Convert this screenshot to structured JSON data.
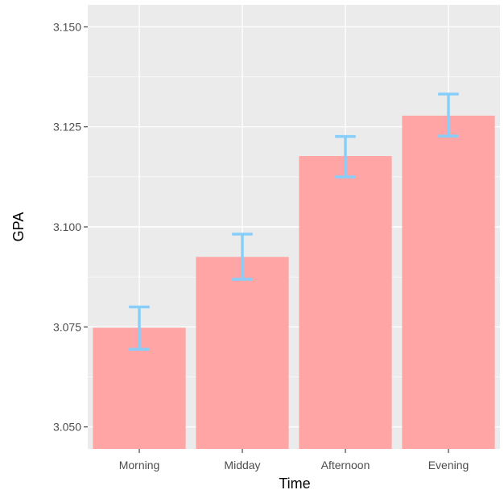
{
  "chart_data": {
    "type": "bar",
    "title": "",
    "xlabel": "Time",
    "ylabel": "GPA",
    "categories": [
      "Morning",
      "Midday",
      "Afternoon",
      "Evening"
    ],
    "values": [
      3.0748,
      3.0925,
      3.1177,
      3.1278
    ],
    "error_bars": [
      {
        "lower": 3.0694,
        "upper": 3.08
      },
      {
        "lower": 3.0869,
        "upper": 3.0982
      },
      {
        "lower": 3.1125,
        "upper": 3.1226
      },
      {
        "lower": 3.1227,
        "upper": 3.1332
      }
    ],
    "ylim": [
      3.0445,
      3.1555
    ],
    "yticks": [
      3.05,
      3.075,
      3.1,
      3.125,
      3.15
    ],
    "ytick_labels": [
      "3.050",
      "3.075",
      "3.100",
      "3.125",
      "3.150"
    ],
    "grid": true,
    "colors": {
      "bar": "#ffa5a5",
      "error_bar": "#87cefa",
      "panel": "#ebebeb",
      "grid": "#ffffff"
    }
  }
}
